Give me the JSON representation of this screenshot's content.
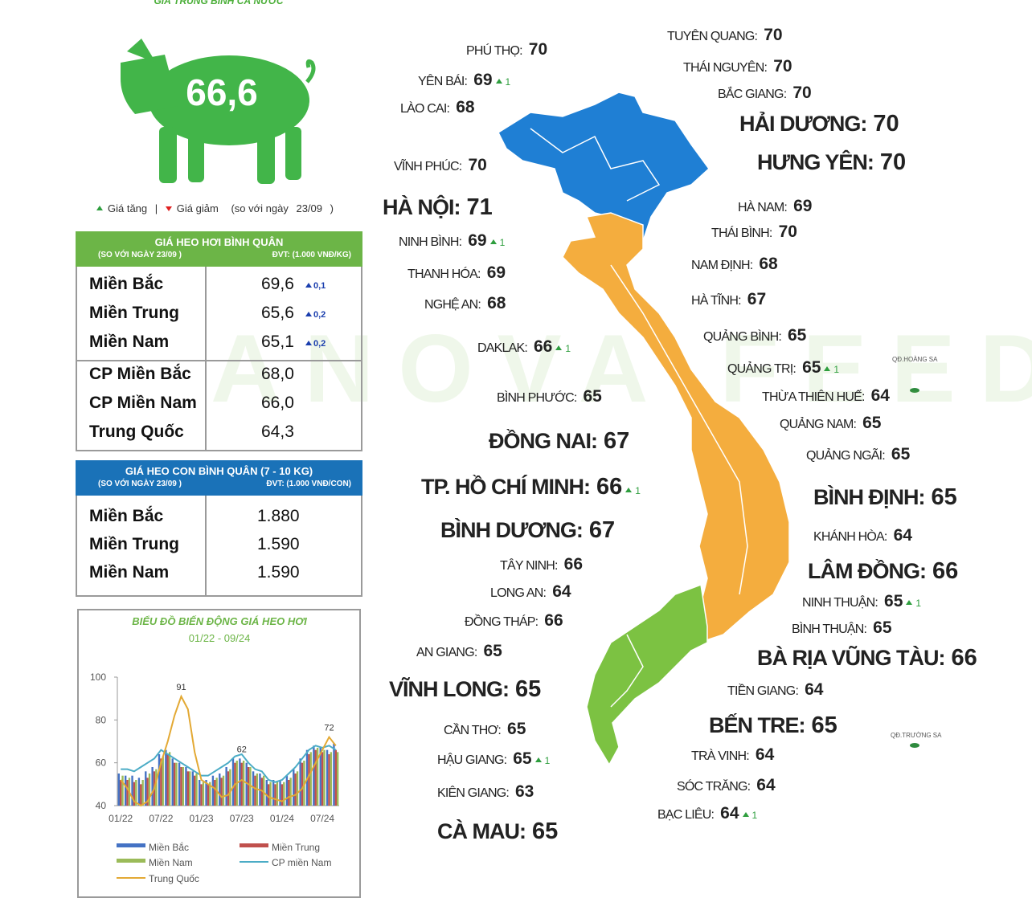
{
  "header": {
    "title": "GIÁ TRUNG BÌNH CẢ NƯỚC",
    "national_price": "66,6"
  },
  "legend": {
    "up": "Giá tăng",
    "separator": "|",
    "down": "Giá giảm",
    "note": "(so với ngày",
    "date": "23/09",
    "close": ")"
  },
  "watermark": "ANOVA FEED",
  "hog_table": {
    "title": "GIÁ HEO HƠI BÌNH QUÂN",
    "subtitle_left": "(SO VỚI NGÀY 23/09 )",
    "subtitle_right": "ĐVT: (1.000 VNĐ/KG)",
    "rows": [
      {
        "region": "Miền Bắc",
        "price": "69,6",
        "change": "0,1"
      },
      {
        "region": "Miền Trung",
        "price": "65,6",
        "change": "0,2"
      },
      {
        "region": "Miền Nam",
        "price": "65,1",
        "change": "0,2"
      },
      {
        "region": "CP Miền Bắc",
        "price": "68,0"
      },
      {
        "region": "CP Miền Nam",
        "price": "66,0"
      },
      {
        "region": "Trung Quốc",
        "price": "64,3"
      }
    ]
  },
  "piglet_table": {
    "title": "GIÁ HEO CON BÌNH QUÂN (7 - 10 KG)",
    "subtitle_left": "(SO VỚI NGÀY 23/09 )",
    "subtitle_right": "ĐVT: (1.000 VNĐ/CON)",
    "rows": [
      {
        "region": "Miền Bắc",
        "price": "1.880"
      },
      {
        "region": "Miền Trung",
        "price": "1.590"
      },
      {
        "region": "Miền Nam",
        "price": "1.590"
      }
    ]
  },
  "islands": [
    "QĐ.HOÀNG SA",
    "QĐ.TRƯỜNG SA"
  ],
  "provinces": [
    {
      "name": "TUYÊN QUANG:",
      "price": "70"
    },
    {
      "name": "PHÚ THỌ:",
      "price": "70"
    },
    {
      "name": "THÁI NGUYÊN:",
      "price": "70"
    },
    {
      "name": "YÊN BÁI:",
      "price": "69",
      "change": "1"
    },
    {
      "name": "BẮC GIANG:",
      "price": "70"
    },
    {
      "name": "LÀO CAI:",
      "price": "68"
    },
    {
      "name": "HẢI DƯƠNG:",
      "price": "70"
    },
    {
      "name": "HƯNG YÊN:",
      "price": "70"
    },
    {
      "name": "VĨNH PHÚC:",
      "price": "70"
    },
    {
      "name": "HÀ NỘI:",
      "price": "71"
    },
    {
      "name": "HÀ NAM:",
      "price": "69"
    },
    {
      "name": "THÁI BÌNH:",
      "price": "70"
    },
    {
      "name": "NINH BÌNH:",
      "price": "69",
      "change": "1"
    },
    {
      "name": "NAM ĐỊNH:",
      "price": "68"
    },
    {
      "name": "THANH HÓA:",
      "price": "69"
    },
    {
      "name": "HÀ TĨNH:",
      "price": "67"
    },
    {
      "name": "NGHỆ AN:",
      "price": "68"
    },
    {
      "name": "QUẢNG BÌNH:",
      "price": "65"
    },
    {
      "name": "DAKLAK:",
      "price": "66",
      "change": "1"
    },
    {
      "name": "QUẢNG TRỊ:",
      "price": "65",
      "change": "1"
    },
    {
      "name": "THỪA THIÊN HUẾ:",
      "price": "64"
    },
    {
      "name": "BÌNH PHƯỚC:",
      "price": "65"
    },
    {
      "name": "QUẢNG NAM:",
      "price": "65"
    },
    {
      "name": "ĐỒNG NAI:",
      "price": "67"
    },
    {
      "name": "QUẢNG NGÃI:",
      "price": "65"
    },
    {
      "name": "TP. HỒ CHÍ MINH:",
      "price": "66",
      "change": "1"
    },
    {
      "name": "BÌNH ĐỊNH:",
      "price": "65"
    },
    {
      "name": "BÌNH DƯƠNG:",
      "price": "67"
    },
    {
      "name": "KHÁNH HÒA:",
      "price": "64"
    },
    {
      "name": "TÂY NINH:",
      "price": "66"
    },
    {
      "name": "LÂM ĐỒNG:",
      "price": "66"
    },
    {
      "name": "LONG AN:",
      "price": "64"
    },
    {
      "name": "NINH THUẬN:",
      "price": "65",
      "change": "1"
    },
    {
      "name": "ĐỒNG THÁP:",
      "price": "66"
    },
    {
      "name": "BÌNH THUẬN:",
      "price": "65"
    },
    {
      "name": "AN GIANG:",
      "price": "65"
    },
    {
      "name": "BÀ RỊA VŨNG TÀU:",
      "price": "66"
    },
    {
      "name": "VĨNH LONG:",
      "price": "65"
    },
    {
      "name": "TIỀN GIANG:",
      "price": "64"
    },
    {
      "name": "BẾN TRE:",
      "price": "65"
    },
    {
      "name": "CẦN THƠ:",
      "price": "65"
    },
    {
      "name": "TRÀ VINH:",
      "price": "64"
    },
    {
      "name": "HẬU GIANG:",
      "price": "65",
      "change": "1"
    },
    {
      "name": "SÓC TRĂNG:",
      "price": "64"
    },
    {
      "name": "KIÊN GIANG:",
      "price": "63"
    },
    {
      "name": "BẠC LIÊU:",
      "price": "64",
      "change": "1"
    },
    {
      "name": "CÀ MAU:",
      "price": "65"
    }
  ],
  "chart_data": {
    "type": "bar",
    "title": "BIỂU ĐỒ BIẾN ĐỘNG GIÁ HEO HƠI",
    "subtitle": "01/22 - 09/24",
    "categories": [
      "01/22",
      null,
      null,
      null,
      null,
      null,
      "07/22",
      null,
      null,
      null,
      null,
      null,
      "01/23",
      null,
      null,
      null,
      null,
      null,
      "07/23",
      null,
      null,
      null,
      null,
      null,
      "01/24",
      null,
      null,
      null,
      null,
      null,
      "07/24",
      null,
      null
    ],
    "ylim": [
      40,
      100
    ],
    "yticks": [
      40,
      60,
      80,
      100
    ],
    "grid": false,
    "series": [
      {
        "name": "Miền Bắc",
        "color": "#4472c4",
        "mark": "bar",
        "values": [
          55,
          54,
          54,
          53,
          56,
          58,
          64,
          66,
          62,
          60,
          58,
          56,
          52,
          52,
          54,
          55,
          58,
          62,
          62,
          60,
          56,
          55,
          52,
          52,
          52,
          54,
          57,
          62,
          66,
          68,
          67,
          66,
          69
        ],
        "value_labels": [
          null,
          null,
          null,
          null,
          null,
          null,
          null,
          null,
          null,
          null,
          null,
          null,
          null,
          null,
          null,
          null,
          null,
          null,
          "62",
          null,
          null,
          null,
          null,
          null,
          null,
          null,
          null,
          null,
          null,
          null,
          null,
          null,
          null
        ]
      },
      {
        "name": "Miền Trung",
        "color": "#c0504d",
        "mark": "bar",
        "values": [
          52,
          52,
          51,
          50,
          53,
          56,
          62,
          64,
          60,
          58,
          56,
          54,
          50,
          50,
          52,
          53,
          56,
          60,
          60,
          58,
          54,
          53,
          50,
          50,
          50,
          52,
          55,
          60,
          64,
          66,
          65,
          64,
          66
        ]
      },
      {
        "name": "Miền Nam",
        "color": "#9bbb59",
        "mark": "bar",
        "values": [
          54,
          53,
          52,
          52,
          55,
          57,
          63,
          65,
          60,
          58,
          56,
          55,
          51,
          51,
          53,
          54,
          57,
          61,
          61,
          58,
          55,
          54,
          51,
          51,
          51,
          53,
          56,
          61,
          65,
          67,
          66,
          65,
          65
        ]
      },
      {
        "name": "CP miền Nam",
        "color": "#4bacc6",
        "mark": "line",
        "values": [
          57,
          57,
          56,
          58,
          60,
          62,
          66,
          64,
          62,
          60,
          58,
          56,
          54,
          54,
          56,
          58,
          60,
          63,
          64,
          60,
          57,
          56,
          52,
          51,
          52,
          55,
          58,
          62,
          66,
          68,
          67,
          68,
          66
        ]
      },
      {
        "name": "Trung Quốc",
        "color": "#e3a934",
        "mark": "line",
        "values": [
          52,
          48,
          42,
          40,
          42,
          48,
          60,
          70,
          82,
          91,
          85,
          65,
          52,
          50,
          48,
          44,
          45,
          50,
          52,
          50,
          48,
          47,
          44,
          43,
          42,
          44,
          45,
          48,
          54,
          60,
          66,
          72,
          68
        ],
        "value_labels": [
          null,
          null,
          null,
          null,
          null,
          null,
          null,
          null,
          null,
          "91",
          null,
          null,
          null,
          null,
          null,
          null,
          null,
          null,
          null,
          null,
          null,
          null,
          null,
          null,
          null,
          null,
          null,
          null,
          null,
          null,
          null,
          "72",
          null
        ]
      }
    ]
  }
}
